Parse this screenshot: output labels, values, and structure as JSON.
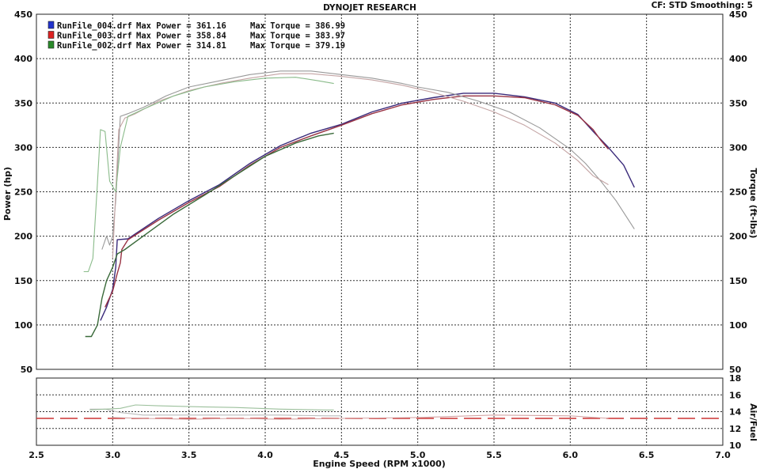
{
  "header": {
    "title": "DYNOJET RESEARCH",
    "correction": "CF: STD  Smoothing: 5"
  },
  "chart_data": {
    "type": "line",
    "title": "DYNOJET RESEARCH",
    "xlabel": "Engine Speed (RPM x1000)",
    "xlim": [
      2.5,
      7.0
    ],
    "xticks": [
      "2.5",
      "3.0",
      "3.5",
      "4.0",
      "4.5",
      "5.0",
      "5.5",
      "6.0",
      "6.5",
      "7.0"
    ],
    "main_panel": {
      "ylabel_left": "Power (hp)",
      "ylabel_right": "Torque (ft-lbs)",
      "ylim": [
        50,
        450
      ],
      "yticks_left": [
        "50",
        "100",
        "150",
        "200",
        "250",
        "300",
        "350",
        "400",
        "450"
      ],
      "yticks_right": [
        "50",
        "100",
        "150",
        "200",
        "250",
        "300",
        "350",
        "400",
        "450"
      ],
      "grid": true
    },
    "afr_panel": {
      "ylabel": "Air/Fuel",
      "ylim": [
        10,
        18
      ],
      "yticks": [
        "10",
        "12",
        "14",
        "16",
        "18"
      ],
      "reference_line": 13.2,
      "grid": true
    },
    "legend_position": "top-left",
    "legend": [
      {
        "file": "RunFile_004.drf",
        "power_label": "Max Power = 361.16",
        "torque_label": "Max Torque = 386.99",
        "color": "#2233cc"
      },
      {
        "file": "RunFile_003.drf",
        "power_label": "Max Power = 358.84",
        "torque_label": "Max Torque = 383.97",
        "color": "#dd2222"
      },
      {
        "file": "RunFile_002.drf",
        "power_label": "Max Power = 314.81",
        "torque_label": "Max Torque = 379.19",
        "color": "#2a8a2a"
      }
    ],
    "series": [
      {
        "name": "RunFile_004.drf",
        "measure": "power",
        "color": "#3a2a7a",
        "x": [
          2.92,
          2.96,
          3.0,
          3.02,
          3.03,
          3.1,
          3.3,
          3.5,
          3.7,
          3.9,
          4.1,
          4.3,
          4.5,
          4.7,
          4.9,
          5.1,
          5.3,
          5.5,
          5.7,
          5.9,
          6.05,
          6.15,
          6.25,
          6.35,
          6.42
        ],
        "y": [
          105,
          120,
          140,
          165,
          196,
          197,
          220,
          240,
          258,
          282,
          302,
          316,
          326,
          340,
          350,
          356,
          361,
          361,
          357,
          350,
          337,
          318,
          300,
          280,
          255
        ]
      },
      {
        "name": "RunFile_003.drf",
        "measure": "power",
        "color": "#993344",
        "x": [
          2.95,
          3.0,
          3.03,
          3.05,
          3.06,
          3.1,
          3.3,
          3.5,
          3.7,
          3.9,
          4.1,
          4.3,
          4.5,
          4.7,
          4.9,
          5.1,
          5.3,
          5.5,
          5.7,
          5.9,
          6.05,
          6.15,
          6.2,
          6.25
        ],
        "y": [
          120,
          138,
          158,
          170,
          185,
          196,
          218,
          238,
          256,
          280,
          300,
          313,
          325,
          338,
          348,
          354,
          358,
          358,
          356,
          348,
          336,
          320,
          308,
          298
        ]
      },
      {
        "name": "RunFile_002.drf",
        "measure": "power",
        "color": "#3a6a3a",
        "x": [
          2.82,
          2.86,
          2.9,
          2.93,
          2.96,
          3.0,
          3.03,
          3.08,
          3.2,
          3.4,
          3.6,
          3.8,
          4.0,
          4.2,
          4.35,
          4.45
        ],
        "y": [
          87,
          87,
          100,
          130,
          150,
          165,
          180,
          185,
          200,
          225,
          246,
          268,
          290,
          305,
          313,
          316
        ]
      },
      {
        "name": "RunFile_004.drf",
        "measure": "torque",
        "color": "#999999",
        "x": [
          2.93,
          2.96,
          2.98,
          3.0,
          3.02,
          3.05,
          3.1,
          3.2,
          3.35,
          3.5,
          3.7,
          3.9,
          4.1,
          4.3,
          4.5,
          4.7,
          4.9,
          5.0,
          5.2,
          5.4,
          5.6,
          5.8,
          6.0,
          6.1,
          6.2,
          6.3,
          6.42
        ],
        "y": [
          185,
          200,
          190,
          200,
          240,
          335,
          338,
          345,
          358,
          368,
          375,
          382,
          386,
          386,
          382,
          378,
          372,
          368,
          362,
          352,
          340,
          322,
          298,
          282,
          262,
          240,
          208
        ]
      },
      {
        "name": "RunFile_003.drf",
        "measure": "torque",
        "color": "#c4a4a4",
        "x": [
          3.0,
          3.02,
          3.04,
          3.08,
          3.15,
          3.3,
          3.5,
          3.7,
          3.9,
          4.1,
          4.3,
          4.5,
          4.7,
          4.9,
          5.1,
          5.3,
          5.5,
          5.7,
          5.9,
          6.05,
          6.15,
          6.25
        ],
        "y": [
          175,
          250,
          320,
          333,
          338,
          352,
          364,
          372,
          378,
          383,
          383,
          380,
          376,
          370,
          362,
          352,
          340,
          325,
          305,
          285,
          268,
          258
        ]
      },
      {
        "name": "RunFile_002.drf",
        "measure": "torque",
        "color": "#8abb8a",
        "x": [
          2.81,
          2.84,
          2.87,
          2.9,
          2.92,
          2.95,
          2.98,
          3.02,
          3.05,
          3.1,
          3.2,
          3.4,
          3.6,
          3.8,
          4.0,
          4.2,
          4.35,
          4.45
        ],
        "y": [
          160,
          160,
          175,
          260,
          320,
          318,
          262,
          250,
          300,
          335,
          343,
          358,
          368,
          374,
          378,
          379,
          375,
          372
        ]
      },
      {
        "name": "RunFile_004.drf",
        "measure": "afr",
        "color": "#bbbbbb",
        "x": [
          2.85,
          2.95,
          3.05,
          3.2,
          3.5,
          3.8,
          4.1,
          4.4,
          4.5
        ],
        "y": [
          14.3,
          14.3,
          13.9,
          13.6,
          13.6,
          13.6,
          13.6,
          13.5,
          13.5
        ]
      },
      {
        "name": "RunFile_002.drf",
        "measure": "afr",
        "color": "#9cc09c",
        "x": [
          2.85,
          2.95,
          3.05,
          3.15,
          3.3,
          3.5,
          3.8,
          4.1,
          4.4,
          4.45
        ],
        "y": [
          14.2,
          14.3,
          14.4,
          14.8,
          14.7,
          14.6,
          14.5,
          14.3,
          14.2,
          14.2
        ]
      },
      {
        "name": "RunFile_003.drf",
        "measure": "afr",
        "color": "#d4a4a4",
        "x": [
          3.0,
          3.2,
          3.5,
          3.8,
          4.1,
          4.5,
          5.0,
          5.5,
          6.0,
          6.25
        ],
        "y": [
          13.3,
          13.2,
          13.1,
          13.2,
          13.1,
          13.2,
          13.3,
          13.6,
          13.5,
          13.2
        ]
      }
    ]
  }
}
